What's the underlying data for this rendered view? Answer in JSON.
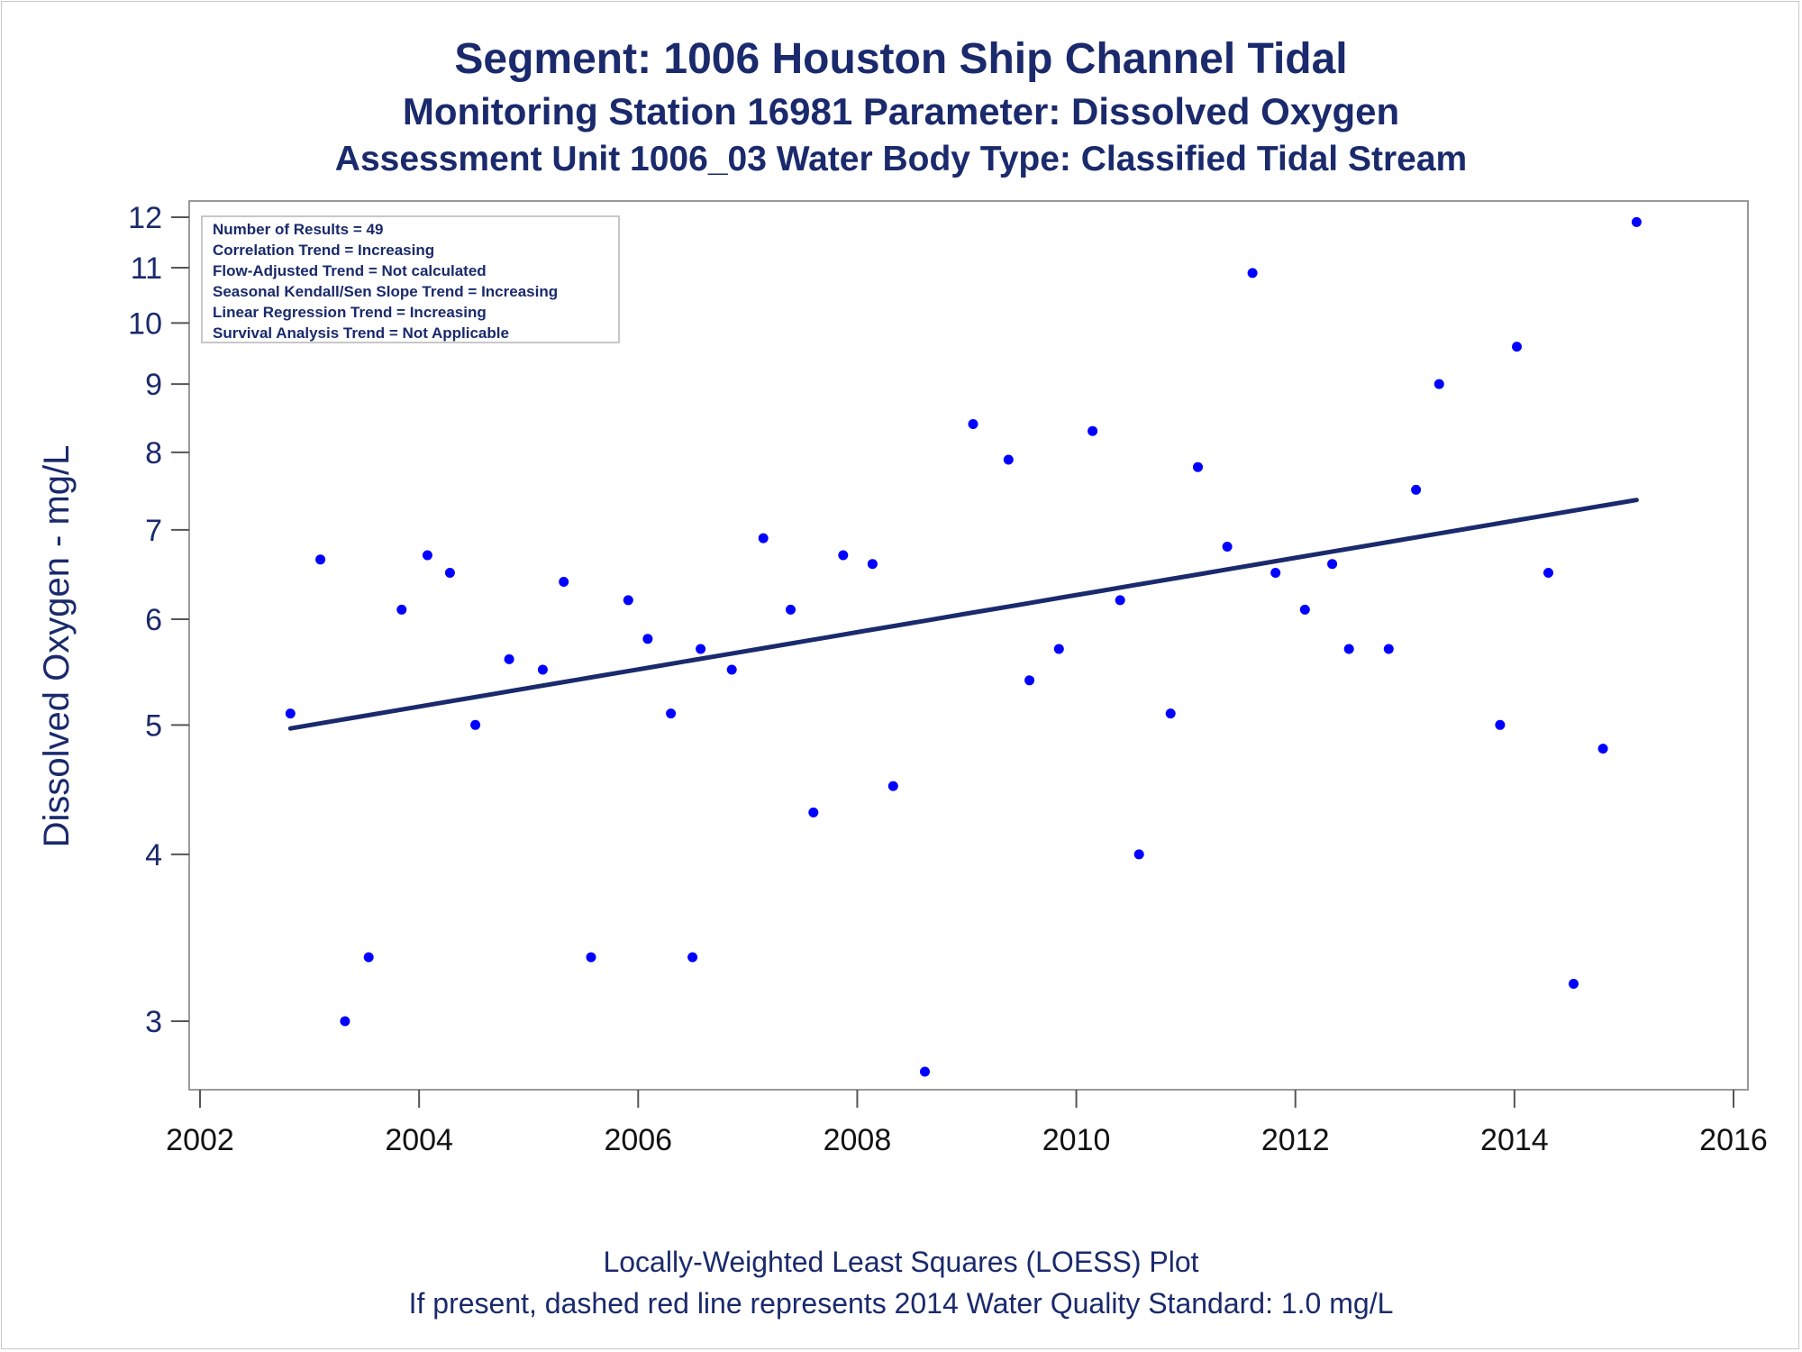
{
  "titles": {
    "line1": "Segment: 1006  Houston Ship Channel Tidal",
    "line2": "Monitoring Station 16981 Parameter: Dissolved Oxygen",
    "line3": "Assessment Unit 1006_03   Water Body Type: Classified Tidal Stream"
  },
  "footnotes": {
    "line1": "Locally-Weighted Least Squares (LOESS) Plot",
    "line2": "If present, dashed red line represents 2014 Water Quality Standard: 1.0 mg/L"
  },
  "inset": {
    "lines": [
      "Number of Results = 49",
      "Correlation Trend = Increasing",
      "Flow-Adjusted Trend = Not calculated",
      "Seasonal Kendall/Sen Slope Trend = Increasing",
      "Linear Regression Trend = Increasing",
      "Survival Analysis Trend = Not Applicable"
    ]
  },
  "colors": {
    "points": "#0000ff",
    "trend_line": "#1a2a6c",
    "text": "#1a2a6c",
    "frame": "#999999"
  },
  "chart_data": {
    "type": "scatter",
    "title": "Segment: 1006  Houston Ship Channel Tidal",
    "xlabel": "",
    "ylabel": "Dissolved Oxygen - mg/L",
    "y_scale": "log",
    "xlim": [
      2002,
      2016
    ],
    "ylim": [
      2.7,
      12.4
    ],
    "x_ticks": [
      2002,
      2004,
      2006,
      2008,
      2010,
      2012,
      2014,
      2016
    ],
    "y_ticks": [
      3,
      4,
      5,
      6,
      7,
      8,
      9,
      10,
      11,
      12
    ],
    "grid": false,
    "legend": "none",
    "points": [
      {
        "x": "2002-10-29",
        "y": 5.1
      },
      {
        "x": "2003-02-06",
        "y": 6.65
      },
      {
        "x": "2003-04-29",
        "y": 3.0
      },
      {
        "x": "2003-07-17",
        "y": 3.35
      },
      {
        "x": "2003-11-04",
        "y": 6.1
      },
      {
        "x": "2004-01-29",
        "y": 6.7
      },
      {
        "x": "2004-04-13",
        "y": 6.5
      },
      {
        "x": "2004-07-07",
        "y": 5.0
      },
      {
        "x": "2004-10-28",
        "y": 5.6
      },
      {
        "x": "2005-02-17",
        "y": 5.5
      },
      {
        "x": "2005-04-28",
        "y": 6.4
      },
      {
        "x": "2005-07-28",
        "y": 3.35
      },
      {
        "x": "2005-11-29",
        "y": 6.2
      },
      {
        "x": "2006-02-02",
        "y": 5.8
      },
      {
        "x": "2006-04-20",
        "y": 5.1
      },
      {
        "x": "2006-07-01",
        "y": 3.35
      },
      {
        "x": "2006-07-28",
        "y": 5.7
      },
      {
        "x": "2006-11-09",
        "y": 5.5
      },
      {
        "x": "2007-02-22",
        "y": 6.9
      },
      {
        "x": "2007-05-24",
        "y": 6.1
      },
      {
        "x": "2007-08-08",
        "y": 4.3
      },
      {
        "x": "2007-11-15",
        "y": 6.7
      },
      {
        "x": "2008-02-21",
        "y": 6.6
      },
      {
        "x": "2008-04-30",
        "y": 4.5
      },
      {
        "x": "2008-08-14",
        "y": 2.75
      },
      {
        "x": "2009-01-22",
        "y": 8.4
      },
      {
        "x": "2009-05-20",
        "y": 7.9
      },
      {
        "x": "2009-07-29",
        "y": 5.4
      },
      {
        "x": "2009-11-04",
        "y": 5.7
      },
      {
        "x": "2010-02-24",
        "y": 8.3
      },
      {
        "x": "2010-05-27",
        "y": 6.2
      },
      {
        "x": "2010-07-29",
        "y": 4.0
      },
      {
        "x": "2010-11-11",
        "y": 5.1
      },
      {
        "x": "2011-02-10",
        "y": 7.8
      },
      {
        "x": "2011-05-19",
        "y": 6.8
      },
      {
        "x": "2011-08-11",
        "y": 10.9
      },
      {
        "x": "2011-10-27",
        "y": 6.5
      },
      {
        "x": "2012-02-02",
        "y": 6.1
      },
      {
        "x": "2012-05-03",
        "y": 6.6
      },
      {
        "x": "2012-06-28",
        "y": 5.7
      },
      {
        "x": "2012-11-08",
        "y": 5.7
      },
      {
        "x": "2013-02-07",
        "y": 7.5
      },
      {
        "x": "2013-04-25",
        "y": 9.0
      },
      {
        "x": "2013-11-14",
        "y": 5.0
      },
      {
        "x": "2014-01-09",
        "y": 9.6
      },
      {
        "x": "2014-04-24",
        "y": 6.5
      },
      {
        "x": "2014-07-17",
        "y": 3.2
      },
      {
        "x": "2014-10-23",
        "y": 4.8
      },
      {
        "x": "2015-02-12",
        "y": 11.9
      }
    ],
    "loess_line": [
      {
        "x": "2002-10-29",
        "y": 4.97
      },
      {
        "x": "2015-02-12",
        "y": 7.37
      }
    ]
  }
}
